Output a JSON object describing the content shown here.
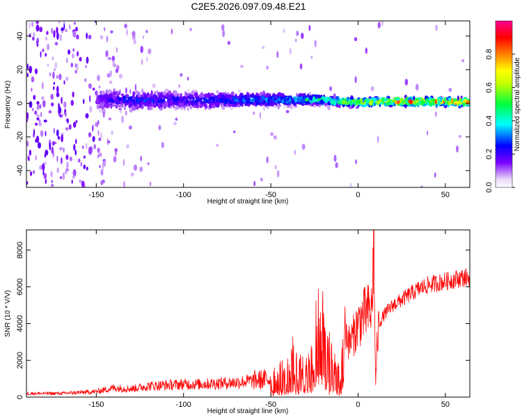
{
  "title": "C2E5.2026.097.09.48.E21",
  "chart_data": [
    {
      "type": "heatmap",
      "xlabel": "Height of straight line (km)",
      "ylabel": "Frequency (Hz)",
      "xlim": [
        -190,
        64
      ],
      "ylim": [
        -50,
        49
      ],
      "xticks": [
        -150,
        -100,
        -50,
        0,
        50
      ],
      "yticks": [
        -40,
        -20,
        0,
        20,
        40
      ],
      "colorbar": {
        "label": "Normalized spectral amplitude",
        "range": [
          0,
          1
        ],
        "ticks": [
          "0.0",
          "0.2",
          "0.4",
          "0.6",
          "0.8"
        ],
        "colormap": [
          "#ffffff",
          "#e0c8f8",
          "#7a00ff",
          "#0000ff",
          "#00ffff",
          "#00ff00",
          "#ffff00",
          "#ff8000",
          "#ff0000",
          "#ff00a0"
        ]
      },
      "description_points": {
        "x": [
          -190,
          -150,
          -130,
          -100,
          -75,
          -50,
          -35,
          -20,
          -10,
          0,
          10,
          25,
          40,
          55,
          64
        ],
        "center_freq": [
          2,
          2,
          2,
          2,
          2,
          2,
          2,
          2,
          1,
          0.5,
          1,
          1,
          1,
          1,
          0.5
        ],
        "peak_amplitude": [
          0.15,
          0.25,
          0.3,
          0.3,
          0.35,
          0.4,
          0.5,
          0.55,
          0.7,
          0.8,
          0.85,
          0.9,
          0.9,
          0.95,
          0.95
        ]
      }
    },
    {
      "type": "line",
      "xlabel": "Height of straight line (km)",
      "ylabel": "SNR (10 * V/V)",
      "xlim": [
        -190,
        64
      ],
      "ylim": [
        0,
        9100
      ],
      "xticks": [
        -150,
        -100,
        -50,
        0,
        50
      ],
      "yticks": [
        0,
        2000,
        4000,
        6000,
        8000
      ],
      "series": [
        {
          "color": "#ff0000",
          "x": [
            -190,
            -170,
            -150,
            -140,
            -130,
            -120,
            -110,
            -100,
            -90,
            -80,
            -70,
            -60,
            -50,
            -45,
            -40,
            -38,
            -36,
            -30,
            -26,
            -24,
            -22,
            -20,
            -18,
            -15,
            -12,
            -10,
            -8,
            -5,
            -2,
            0,
            2,
            5,
            8,
            9,
            10,
            11,
            12,
            15,
            20,
            25,
            30,
            35,
            40,
            45,
            50,
            55,
            60,
            64
          ],
          "y": [
            200,
            200,
            300,
            500,
            450,
            600,
            650,
            700,
            700,
            750,
            800,
            900,
            1000,
            1200,
            1500,
            2800,
            1600,
            1400,
            2000,
            4400,
            3600,
            5000,
            3000,
            1800,
            1300,
            900,
            4000,
            2900,
            3500,
            4000,
            4300,
            4600,
            4700,
            9000,
            600,
            3000,
            4000,
            4500,
            5000,
            5300,
            5600,
            5900,
            6100,
            6200,
            6300,
            6400,
            6500,
            6500
          ]
        }
      ]
    }
  ]
}
